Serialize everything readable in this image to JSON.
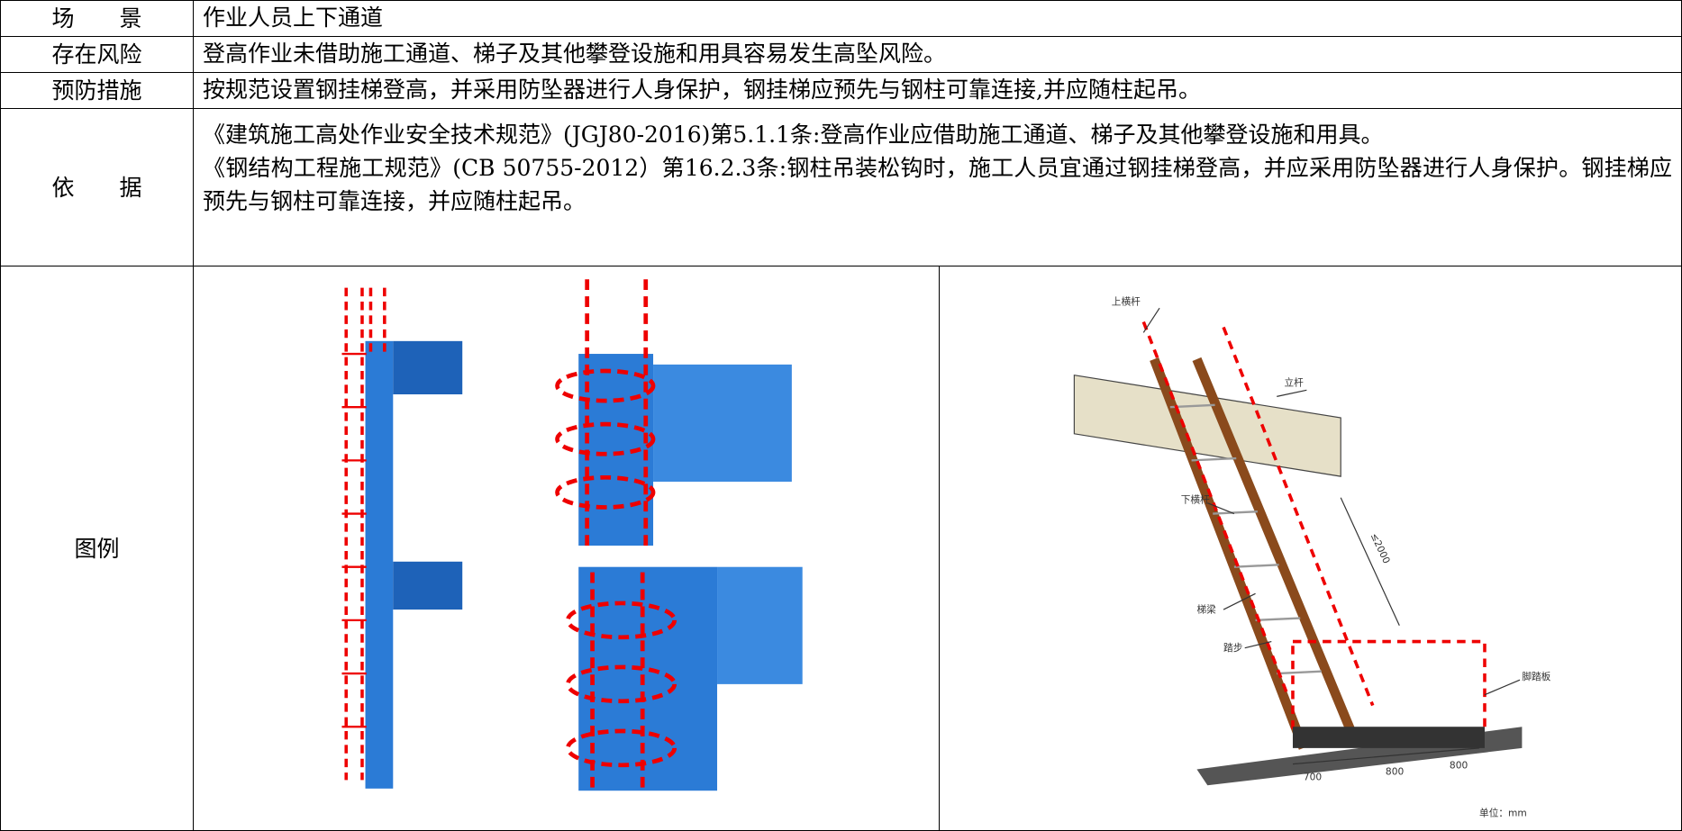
{
  "rows": [
    {
      "label": "场　　景",
      "content": [
        "作业人员上下通道"
      ]
    },
    {
      "label": "存在风险",
      "content": [
        "登高作业未借助施工通道、梯子及其他攀登设施和用具容易发生高坠风险。"
      ]
    },
    {
      "label": "预防措施",
      "content": [
        "按规范设置钢挂梯登高，并采用防坠器进行人身保护，钢挂梯应预先与钢柱可靠连接,并应随柱起吊。"
      ]
    },
    {
      "label": "依　　据",
      "content": [
        "《建筑施工高处作业安全技术规范》(JGJ80-2016)第5.1.1条:登高作业应借助施工通道、梯子及其他攀登设施和用具。",
        "《钢结构工程施工规范》(CB 50755-2012）第16.2.3条:钢柱吊装松钩时，施工人员宜通过钢挂梯登高，并应采用防坠器进行人身保护。钢挂梯应预先与钢柱可靠连接，并应随柱起吊。"
      ]
    }
  ],
  "legend": {
    "label": "图例",
    "right_labels": [
      "上横杆",
      "立杆",
      "下横杆",
      "梯梁",
      "踏步",
      "脚踏板",
      "≤2000",
      "700",
      "800",
      "800",
      "单位：mm"
    ]
  }
}
